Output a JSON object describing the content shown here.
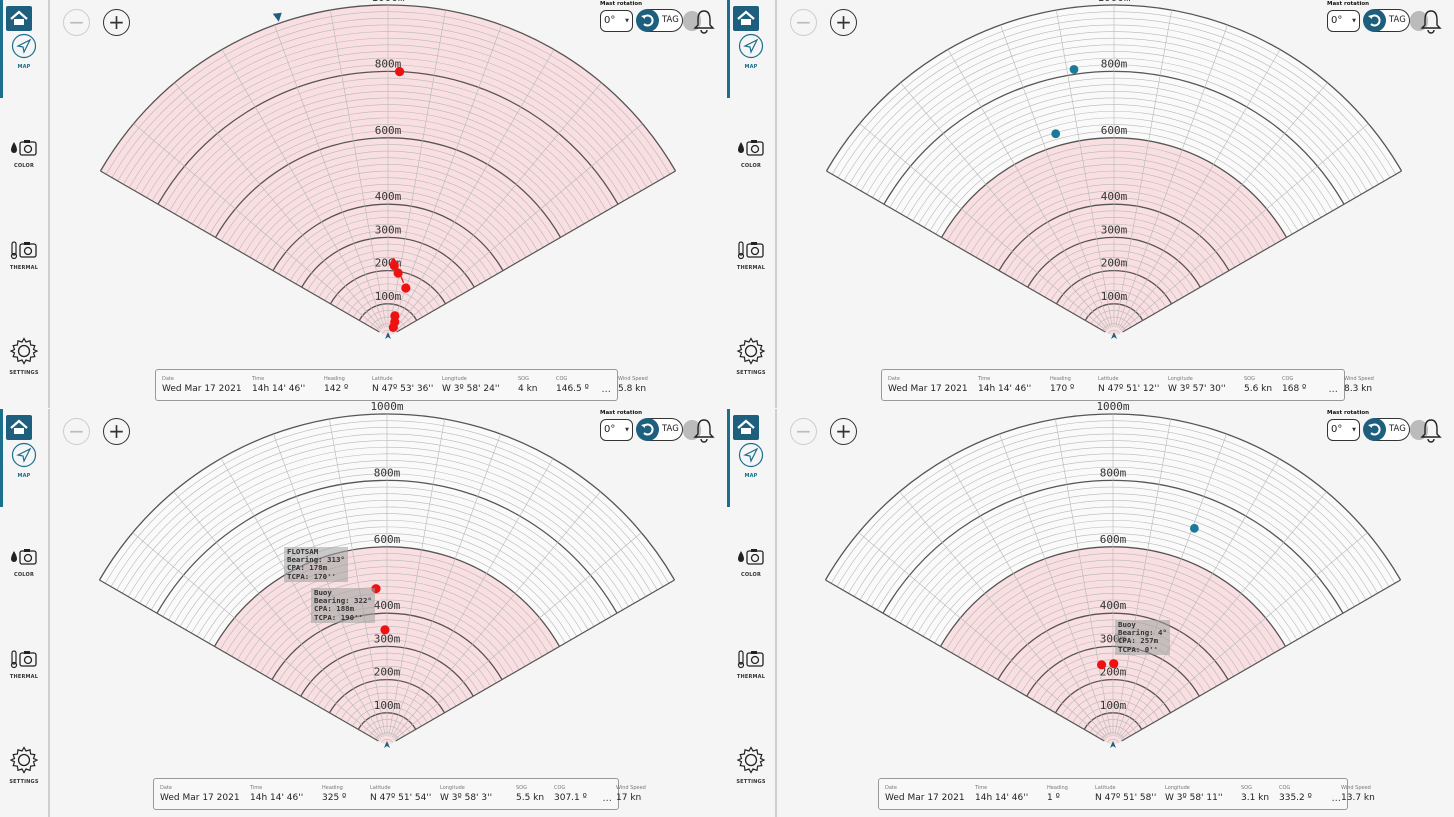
{
  "colors": {
    "accent": "#1e5f7e",
    "target": "#ee1111",
    "blue_target": "#1a7a98",
    "zone": "#f9dfe1"
  },
  "nav": {
    "map_label": "MAP",
    "color_label": "COLOR",
    "thermal_label": "THERMAL",
    "settings_label": "SETTINGS"
  },
  "controls": {
    "zoom_out": "−",
    "zoom_in": "+",
    "mast_rotation_label": "Mast rotation",
    "mast_value": "0°",
    "tag_label": "TAG"
  },
  "radar": {
    "range_labels": [
      "100m",
      "200m",
      "300m",
      "400m",
      "600m",
      "800m",
      "1000m"
    ]
  },
  "info_labels": [
    "Date",
    "Time",
    "Heading",
    "Latitude",
    "Longitude",
    "SOG",
    "COG",
    "Wind Speed"
  ],
  "more": "...",
  "panels": [
    {
      "values": [
        "Wed Mar 17 2021",
        "14h 14' 46''",
        "142 º",
        "N 47º 53' 36''",
        "W 3º 58' 24''",
        "4 kn",
        "146.5 º",
        "5.8 kn"
      ],
      "zone": "full",
      "targets": [
        {
          "r": 800,
          "a": 2.5,
          "color": "red"
        },
        {
          "r": 216,
          "a": 5,
          "color": "red"
        },
        {
          "r": 195,
          "a": 9,
          "color": "red"
        },
        {
          "r": 157,
          "a": 20,
          "color": "red"
        },
        {
          "r": 67,
          "a": 18,
          "color": "red"
        },
        {
          "r": 50,
          "a": 24,
          "color": "red"
        },
        {
          "r": 33,
          "a": 29,
          "color": "red"
        }
      ],
      "arrow": true,
      "bearing_marker": -19,
      "tooltips": []
    },
    {
      "values": [
        "Wed Mar 17 2021",
        "14h 14' 46''",
        "170 º",
        "N 47º 51' 12''",
        "W 3º 57' 30''",
        "5.6 kn",
        "168 º",
        "8.3 kn"
      ],
      "zone": "inner",
      "targets": [
        {
          "r": 815,
          "a": -8.5,
          "color": "blue"
        },
        {
          "r": 637,
          "a": -16,
          "color": "blue"
        }
      ],
      "arrow": false,
      "tooltips": []
    },
    {
      "values": [
        "Wed Mar 17 2021",
        "14h 14' 46''",
        "325 º",
        "N 47º 51' 54''",
        "W 3º 58' 3''",
        "5.5 kn",
        "307.1 º",
        "17 kn"
      ],
      "zone": "inner",
      "targets": [
        {
          "r": 475,
          "a": -4,
          "color": "red"
        },
        {
          "r": 350,
          "a": -1,
          "color": "red"
        }
      ],
      "arrow": false,
      "tooltips": [
        {
          "lines": [
            "FLOTSAM",
            "Bearing: 313°",
            "CPA: 178m",
            "TCPA: 170''"
          ]
        },
        {
          "lines": [
            "Buoy",
            "Bearing: 322°",
            "CPA: 188m",
            "TCPA: 190''"
          ]
        }
      ]
    },
    {
      "values": [
        "Wed Mar 17 2021",
        "14h 14' 46''",
        "1 º",
        "N 47º 51' 58''",
        "W 3º 58' 11''",
        "3.1 kn",
        "335.2 º",
        "13.7 kn"
      ],
      "zone": "inner",
      "targets": [
        {
          "r": 700,
          "a": 20.5,
          "color": "blue"
        },
        {
          "r": 247,
          "a": -8,
          "color": "red"
        },
        {
          "r": 248,
          "a": 0.5,
          "color": "red"
        }
      ],
      "arrow": false,
      "tooltips": [
        {
          "lines": [
            "Buoy",
            "Bearing: 4°",
            "CPA: 257m",
            "TCPA: 0''"
          ]
        }
      ]
    }
  ]
}
